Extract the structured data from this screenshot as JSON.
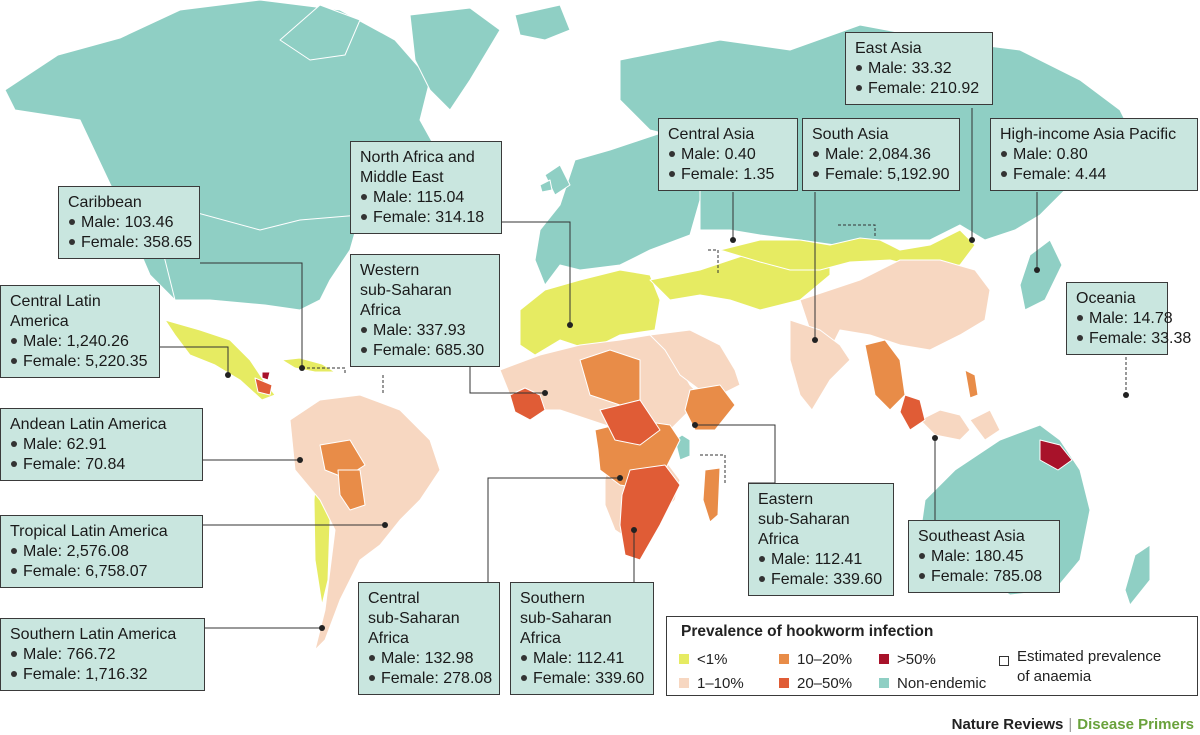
{
  "colors": {
    "ocean": "#ffffff",
    "non_endemic": "#8fcfc4",
    "lt1": "#e6eb62",
    "r1_10": "#f7d7c1",
    "r10_20": "#e88c48",
    "r20_50": "#e05c36",
    "gt50": "#a8122a",
    "box_fill": "#c9e6df",
    "credit_green": "#6aa23c"
  },
  "regions": [
    {
      "id": "east-asia",
      "title": "East Asia",
      "male": "33.32",
      "female": "210.92"
    },
    {
      "id": "central-asia",
      "title": "Central Asia",
      "male": "0.40",
      "female": "1.35"
    },
    {
      "id": "south-asia",
      "title": "South Asia",
      "male": "2,084.36",
      "female": "5,192.90"
    },
    {
      "id": "high-income-asia-pacific",
      "title": "High-income Asia Pacific",
      "male": "0.80",
      "female": "4.44"
    },
    {
      "id": "north-africa-middle-east",
      "title": "North Africa and\nMiddle East",
      "male": "115.04",
      "female": "314.18"
    },
    {
      "id": "caribbean",
      "title": "Caribbean",
      "male": "103.46",
      "female": "358.65"
    },
    {
      "id": "western-ssa",
      "title": "Western\nsub-Saharan\nAfrica",
      "male": "337.93",
      "female": "685.30"
    },
    {
      "id": "central-latin-america",
      "title": "Central Latin\nAmerica",
      "male": "1,240.26",
      "female": "5,220.35"
    },
    {
      "id": "oceania",
      "title": "Oceania",
      "male": "14.78",
      "female": "33.38"
    },
    {
      "id": "andean-latin-america",
      "title": "Andean Latin America",
      "male": "62.91",
      "female": "70.84"
    },
    {
      "id": "eastern-ssa",
      "title": "Eastern\nsub-Saharan\nAfrica",
      "male": "112.41",
      "female": "339.60"
    },
    {
      "id": "tropical-latin-america",
      "title": "Tropical Latin America",
      "male": "2,576.08",
      "female": "6,758.07"
    },
    {
      "id": "southeast-asia",
      "title": "Southeast Asia",
      "male": "180.45",
      "female": "785.08"
    },
    {
      "id": "central-ssa",
      "title": "Central\nsub-Saharan\nAfrica",
      "male": "132.98",
      "female": "278.08"
    },
    {
      "id": "southern-ssa",
      "title": "Southern\nsub-Saharan\nAfrica",
      "male": "112.41",
      "female": "339.60"
    },
    {
      "id": "southern-latin-america",
      "title": "Southern Latin America",
      "male": "766.72",
      "female": "1,716.32"
    }
  ],
  "labels": {
    "male": "Male: ",
    "female": "Female: "
  },
  "legend": {
    "title": "Prevalence of hookworm infection",
    "items": [
      {
        "label": "<1%",
        "color": "lt1"
      },
      {
        "label": "1–10%",
        "color": "r1_10"
      },
      {
        "label": "10–20%",
        "color": "r10_20"
      },
      {
        "label": "20–50%",
        "color": "r20_50"
      },
      {
        "label": ">50%",
        "color": "gt50"
      },
      {
        "label": "Non-endemic",
        "color": "non_endemic"
      }
    ],
    "anaemia": "Estimated prevalence\nof anaemia"
  },
  "credit": {
    "publisher": "Nature Reviews",
    "series": "Disease Primers"
  }
}
